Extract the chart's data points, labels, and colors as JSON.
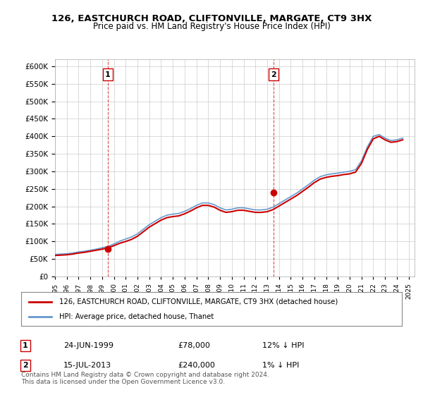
{
  "title": "126, EASTCHURCH ROAD, CLIFTONVILLE, MARGATE, CT9 3HX",
  "subtitle": "Price paid vs. HM Land Registry's House Price Index (HPI)",
  "legend_line1": "126, EASTCHURCH ROAD, CLIFTONVILLE, MARGATE, CT9 3HX (detached house)",
  "legend_line2": "HPI: Average price, detached house, Thanet",
  "annotation1_label": "1",
  "annotation1_date": "24-JUN-1999",
  "annotation1_price": "£78,000",
  "annotation1_hpi": "12% ↓ HPI",
  "annotation2_label": "2",
  "annotation2_date": "15-JUL-2013",
  "annotation2_price": "£240,000",
  "annotation2_hpi": "1% ↓ HPI",
  "footnote": "Contains HM Land Registry data © Crown copyright and database right 2024.\nThis data is licensed under the Open Government Licence v3.0.",
  "sale1_year": 1999.48,
  "sale1_price": 78000,
  "sale2_year": 2013.54,
  "sale2_price": 240000,
  "hpi_color": "#6699cc",
  "price_color": "#cc0000",
  "sale_dot_color": "#cc0000",
  "vline_color": "#cc0000",
  "ylim": [
    0,
    620000
  ],
  "xlim_start": 1995,
  "xlim_end": 2025.5,
  "background_color": "#ffffff",
  "grid_color": "#cccccc",
  "hpi_years": [
    1995,
    1995.5,
    1996,
    1996.5,
    1997,
    1997.5,
    1998,
    1998.5,
    1999,
    1999.5,
    2000,
    2000.5,
    2001,
    2001.5,
    2002,
    2002.5,
    2003,
    2003.5,
    2004,
    2004.5,
    2005,
    2005.5,
    2006,
    2006.5,
    2007,
    2007.5,
    2008,
    2008.5,
    2009,
    2009.5,
    2010,
    2010.5,
    2011,
    2011.5,
    2012,
    2012.5,
    2013,
    2013.5,
    2014,
    2014.5,
    2015,
    2015.5,
    2016,
    2016.5,
    2017,
    2017.5,
    2018,
    2018.5,
    2019,
    2019.5,
    2020,
    2020.5,
    2021,
    2021.5,
    2022,
    2022.5,
    2023,
    2023.5,
    2024,
    2024.5
  ],
  "hpi_values": [
    63000,
    64000,
    65000,
    67000,
    70000,
    72000,
    75000,
    78000,
    82000,
    86000,
    93000,
    101000,
    107000,
    113000,
    122000,
    135000,
    148000,
    158000,
    168000,
    175000,
    178000,
    180000,
    186000,
    194000,
    203000,
    210000,
    210000,
    205000,
    196000,
    190000,
    192000,
    196000,
    196000,
    193000,
    190000,
    190000,
    192000,
    198000,
    208000,
    218000,
    228000,
    238000,
    250000,
    262000,
    275000,
    285000,
    290000,
    293000,
    295000,
    298000,
    300000,
    305000,
    330000,
    370000,
    400000,
    405000,
    395000,
    388000,
    390000,
    395000
  ],
  "price_years": [
    1995,
    1995.5,
    1996,
    1996.5,
    1997,
    1997.5,
    1998,
    1998.5,
    1999,
    1999.5,
    2000,
    2000.5,
    2001,
    2001.5,
    2002,
    2002.5,
    2003,
    2003.5,
    2004,
    2004.5,
    2005,
    2005.5,
    2006,
    2006.5,
    2007,
    2007.5,
    2008,
    2008.5,
    2009,
    2009.5,
    2010,
    2010.5,
    2011,
    2011.5,
    2012,
    2012.5,
    2013,
    2013.5,
    2014,
    2014.5,
    2015,
    2015.5,
    2016,
    2016.5,
    2017,
    2017.5,
    2018,
    2018.5,
    2019,
    2019.5,
    2020,
    2020.5,
    2021,
    2021.5,
    2022,
    2022.5,
    2023,
    2023.5,
    2024,
    2024.5
  ],
  "price_values": [
    60000,
    61000,
    62000,
    64000,
    67000,
    69000,
    72000,
    75000,
    78000,
    82000,
    88000,
    95000,
    100000,
    106000,
    115000,
    128000,
    141000,
    151000,
    161000,
    168000,
    171000,
    173000,
    179000,
    187000,
    196000,
    203000,
    203000,
    198000,
    189000,
    183000,
    185000,
    189000,
    189000,
    186000,
    183000,
    183000,
    185000,
    191000,
    201000,
    211000,
    221000,
    231000,
    243000,
    255000,
    268000,
    278000,
    283000,
    286000,
    288000,
    291000,
    293000,
    298000,
    323000,
    363000,
    393000,
    400000,
    390000,
    383000,
    385000,
    390000
  ]
}
